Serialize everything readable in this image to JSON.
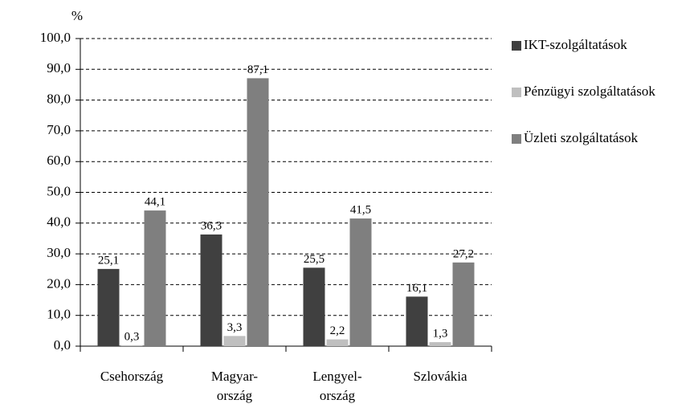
{
  "chart_data": {
    "type": "bar",
    "y_label": "%",
    "categories": [
      "Csehország",
      [
        "Magyar-",
        "ország"
      ],
      [
        "Lengyel-",
        "ország"
      ],
      "Szlovákia"
    ],
    "series": [
      {
        "name": "IKT-szolgáltatások",
        "color": "#404040",
        "values": [
          25.1,
          36.3,
          25.5,
          16.1
        ],
        "value_labels": [
          "25,1",
          "36,3",
          "25,5",
          "16,1"
        ]
      },
      {
        "name": "Pénzügyi szolgáltatások",
        "color": "#bfbfbf",
        "values": [
          0.3,
          3.3,
          2.2,
          1.3
        ],
        "value_labels": [
          "0,3",
          "3,3",
          "2,2",
          "1,3"
        ]
      },
      {
        "name": "Üzleti szolgáltatások",
        "color": "#7f7f7f",
        "values": [
          44.1,
          87.1,
          41.5,
          27.2
        ],
        "value_labels": [
          "44,1",
          "87,1",
          "41,5",
          "27,2"
        ]
      }
    ],
    "ylim": [
      0,
      100
    ],
    "yticks": [
      {
        "value": 0,
        "label": "0,0"
      },
      {
        "value": 10,
        "label": "10,0"
      },
      {
        "value": 20,
        "label": "20,0"
      },
      {
        "value": 30,
        "label": "30,0"
      },
      {
        "value": 40,
        "label": "40,0"
      },
      {
        "value": 50,
        "label": "50,0"
      },
      {
        "value": 60,
        "label": "60,0"
      },
      {
        "value": 70,
        "label": "70,0"
      },
      {
        "value": 80,
        "label": "80,0"
      },
      {
        "value": 90,
        "label": "90,0"
      },
      {
        "value": 100,
        "label": "100,0"
      }
    ],
    "grid": true,
    "legend": "right"
  }
}
